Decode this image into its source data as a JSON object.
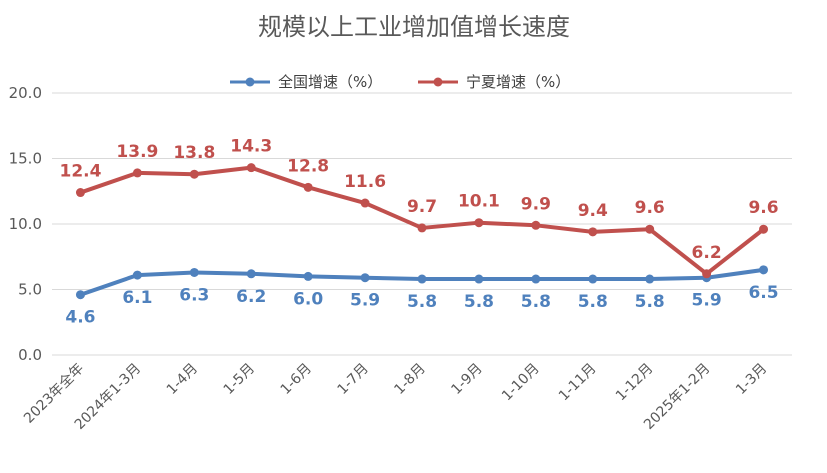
{
  "chart_data": {
    "type": "line",
    "title": "规模以上工业增加值增长速度",
    "xlabel": "",
    "ylabel": "",
    "ylim": [
      0,
      20
    ],
    "yticks": [
      "0.0",
      "5.0",
      "10.0",
      "15.0",
      "20.0"
    ],
    "grid": true,
    "legend_position": "top",
    "categories": [
      "2023年全年",
      "2024年1-3月",
      "1-4月",
      "1-5月",
      "1-6月",
      "1-7月",
      "1-8月",
      "1-9月",
      "1-10月",
      "1-11月",
      "1-12月",
      "2025年1-2月",
      "1-3月"
    ],
    "series": [
      {
        "name": "全国增速（%）",
        "color": "#4f81bd",
        "values": [
          4.6,
          6.1,
          6.3,
          6.2,
          6.0,
          5.9,
          5.8,
          5.8,
          5.8,
          5.8,
          5.8,
          5.9,
          6.5
        ],
        "labels": [
          "4.6",
          "6.1",
          "6.3",
          "6.2",
          "6.0",
          "5.9",
          "5.8",
          "5.8",
          "5.8",
          "5.8",
          "5.8",
          "5.9",
          "6.5"
        ]
      },
      {
        "name": "宁夏增速（%）",
        "color": "#c0504d",
        "values": [
          12.4,
          13.9,
          13.8,
          14.3,
          12.8,
          11.6,
          9.7,
          10.1,
          9.9,
          9.4,
          9.6,
          6.2,
          9.6
        ],
        "labels": [
          "12.4",
          "13.9",
          "13.8",
          "14.3",
          "12.8",
          "11.6",
          "9.7",
          "10.1",
          "9.9",
          "9.4",
          "9.6",
          "6.2",
          "9.6"
        ]
      }
    ]
  }
}
